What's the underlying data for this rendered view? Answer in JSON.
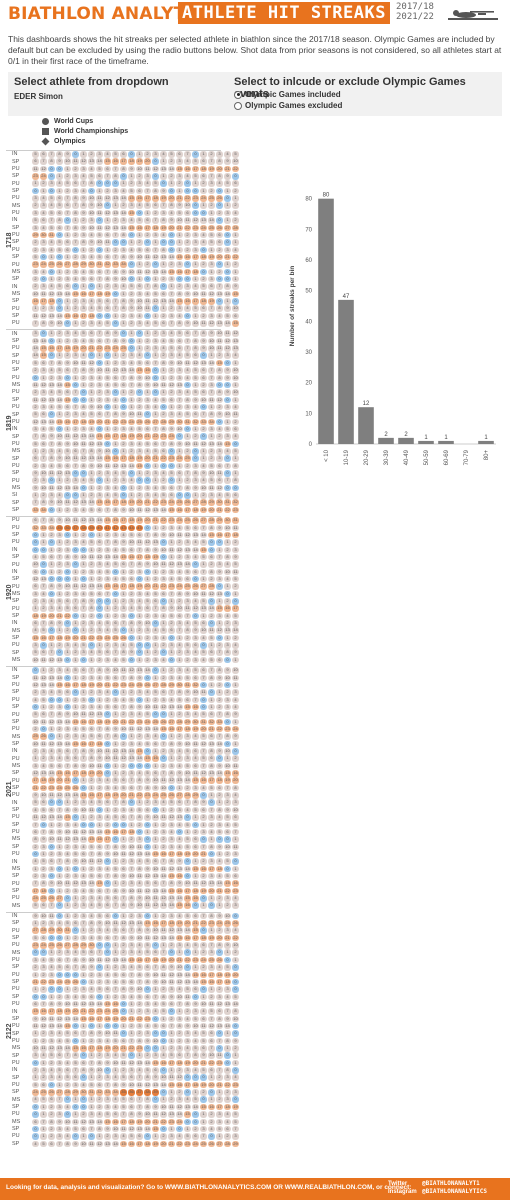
{
  "header": {
    "brand": "BIATHLON ANALYTICS",
    "title": "ATHLETE HIT STREAKS",
    "season_top": "2017/18",
    "season_bottom": "2021/22",
    "accent_color": "#e8731e"
  },
  "intro": "This dashboards shows the hit streaks per selected athlete in biathlon since the 2017/18 season. Olympic Games are included by default but can be excluded by using the radio buttons below. Shot data from prior seasons is not considered, so all athletes start at 0/1 in their first race of the timeframe.",
  "athlete_control": {
    "title": "Select athlete from dropdown",
    "selected": "EDER Simon"
  },
  "olympic_control": {
    "title": "Select to inlcude or exclude Olympic Games events",
    "options": [
      "Olympic Games included",
      "Olympic Games excluded"
    ],
    "selected_index": 0
  },
  "legend": {
    "items": [
      {
        "label": "World Cups",
        "shape": "circle"
      },
      {
        "label": "World Championships",
        "shape": "square"
      },
      {
        "label": "Olympics",
        "shape": "diamond"
      }
    ]
  },
  "race_grid": {
    "seasons": [
      {
        "label": "1718",
        "races": [
          "IN",
          "SP",
          "PU",
          "SP",
          "PU",
          "SP",
          "PU",
          "MS",
          "PU",
          "IN",
          "SP",
          "PU",
          "SP",
          "PU",
          "SP",
          "PU",
          "MS",
          "SP",
          "IN",
          "MS",
          "SP",
          "PU",
          "SP",
          "PU"
        ]
      },
      {
        "label": "1819",
        "races": [
          "IN",
          "SP",
          "PU",
          "SP",
          "PU",
          "SP",
          "PU",
          "MS",
          "PU",
          "SP",
          "PU",
          "SP",
          "PU",
          "IN",
          "SP",
          "PU",
          "MS",
          "SP",
          "PU",
          "SP",
          "PU",
          "MS",
          "SI",
          "SP",
          "SP"
        ]
      },
      {
        "label": "1920",
        "races": [
          "PU",
          "PU",
          "SP",
          "PU",
          "IN",
          "SP",
          "PU",
          "IN",
          "SP",
          "PU",
          "MS",
          "SP",
          "PU",
          "SP",
          "IN",
          "MS",
          "SP",
          "PU",
          "SP",
          "MS"
        ]
      },
      {
        "label": "2021",
        "races": [
          "IN",
          "SP",
          "PU",
          "SP",
          "PU",
          "SP",
          "PU",
          "SP",
          "PU",
          "MS",
          "SP",
          "IN",
          "PU",
          "MS",
          "SP",
          "PU",
          "SP",
          "PU",
          "IN",
          "SP",
          "PU",
          "SP",
          "PU",
          "MS",
          "SP",
          "PU",
          "IN",
          "MS",
          "SP",
          "PU",
          "SP",
          "PU",
          "MS"
        ]
      },
      {
        "label": "2122",
        "races": [
          "IN",
          "SP",
          "PU",
          "SP",
          "PU",
          "MS",
          "PU",
          "SP",
          "PU",
          "SP",
          "PU",
          "SP",
          "PU",
          "IN",
          "SP",
          "PU",
          "SP",
          "PU",
          "MS",
          "SP",
          "PU",
          "IN",
          "SP",
          "PU",
          "SP",
          "MS",
          "SP",
          "PU",
          "MS",
          "SP",
          "PU",
          "SP"
        ]
      }
    ],
    "bin_colors": [
      "#9ec7ea",
      "#dfd3cf",
      "#efb894",
      "#e47d3c",
      "#d8551b"
    ]
  },
  "chart_data": {
    "type": "bar",
    "categories": [
      "< 10",
      "10-19",
      "20-29",
      "30-39",
      "40-49",
      "50-59",
      "60-69",
      "70-79",
      "80+"
    ],
    "values": [
      80,
      47,
      12,
      2,
      2,
      1,
      1,
      0,
      1
    ],
    "title": "",
    "xlabel": "",
    "ylabel": "Number of streaks per bin",
    "ylim": [
      0,
      90
    ],
    "yticks": [
      0,
      10,
      20,
      30,
      40,
      50,
      60,
      70,
      80
    ],
    "bar_color": "#7f7f7f",
    "grid": false
  },
  "footer": {
    "text": "Looking for data, analysis and visualization? Go to WWW.BIATHLONANALYTICS.COM OR WWW.REALBIATHLON.COM, or connect:",
    "social_1": "Twitter",
    "social_2": "Instagram",
    "handle_1": "@BIATHLONANALYT1",
    "handle_2": "@BIATHLONANALYTICS"
  }
}
